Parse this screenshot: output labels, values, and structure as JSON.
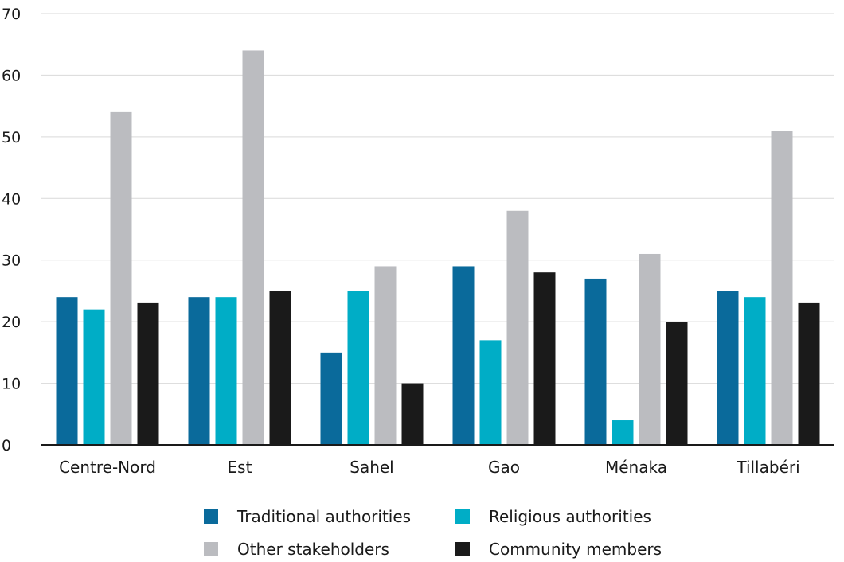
{
  "chart_data": {
    "type": "bar",
    "categories": [
      "Centre-Nord",
      "Est",
      "Sahel",
      "Gao",
      "Ménaka",
      "Tillabéri"
    ],
    "series": [
      {
        "name": "Traditional authorities",
        "color": "#0a6a9b",
        "values": [
          24,
          24,
          15,
          29,
          27,
          25
        ]
      },
      {
        "name": "Religious authorities",
        "color": "#00adc6",
        "values": [
          22,
          24,
          25,
          17,
          4,
          24
        ]
      },
      {
        "name": "Other stakeholders",
        "color": "#bbbcc0",
        "values": [
          54,
          64,
          29,
          38,
          31,
          51
        ]
      },
      {
        "name": "Community members",
        "color": "#1a1a1a",
        "values": [
          23,
          25,
          10,
          28,
          20,
          23
        ]
      }
    ],
    "ylim": [
      0,
      70
    ],
    "yticks": [
      0,
      10,
      20,
      30,
      40,
      50,
      60,
      70
    ],
    "grid": true,
    "legend_position": "bottom"
  }
}
